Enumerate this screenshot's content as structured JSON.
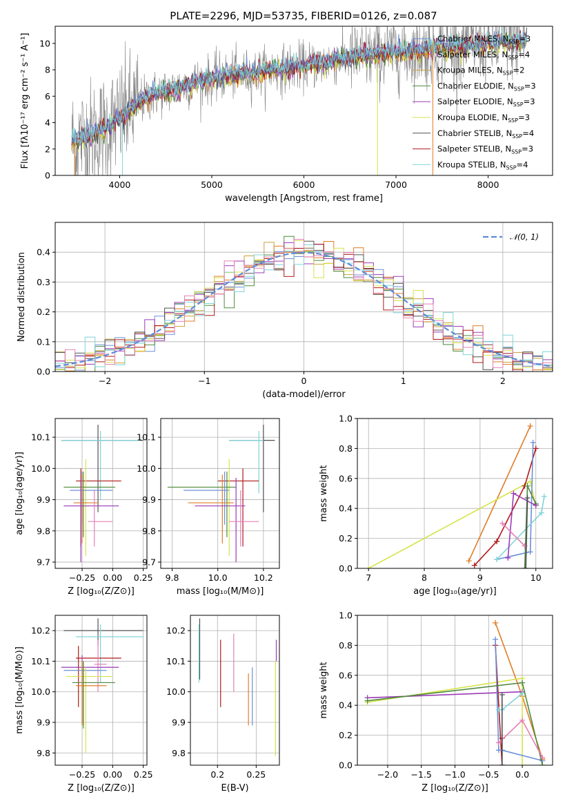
{
  "figure_title": "PLATE=2296, MJD=53735, FIBERID=0126, z=0.087",
  "colors": {
    "data": "#808080",
    "Chabrier MILES": "#6a8fd6",
    "Salpeter MILES": "#e07c24",
    "Kroupa MILES": "#c8a13a",
    "Chabrier ELODIE": "#4e8a3e",
    "Salpeter ELODIE": "#9b3ab5",
    "Kroupa ELODIE": "#d6e34a",
    "Chabrier STELIB": "#505050",
    "Salpeter STELIB": "#b01818",
    "Kroupa STELIB": "#7fd4d8",
    "pink": "#e57fb5",
    "lime": "#cde35a",
    "gauss": "#5b8bd9"
  },
  "chart_data": [
    {
      "type": "line",
      "panel": "spectrum",
      "xlabel": "wavelength [Angstrom, rest frame]",
      "ylabel": "Flux [fλ10⁻¹⁷ erg cm⁻² s⁻¹ A⁻¹]",
      "xlim": [
        3300,
        8700
      ],
      "ylim": [
        0,
        11.3
      ],
      "xticks": [
        "4000",
        "5000",
        "6000",
        "7000",
        "8000"
      ],
      "yticks": [
        "0",
        "2",
        "4",
        "6",
        "8",
        "10"
      ],
      "legend_loc": "upper right",
      "legend": [
        {
          "model": "Chabrier MILES",
          "text": "Chabrier MILES, N",
          "sub": "SSP",
          "suffix": "=3"
        },
        {
          "model": "Salpeter MILES",
          "text": "Salpeter MILES, N",
          "sub": "SSP",
          "suffix": "=4"
        },
        {
          "model": "Kroupa MILES",
          "text": "Kroupa MILES, N",
          "sub": "SSP",
          "suffix": "=2"
        },
        {
          "model": "Chabrier ELODIE",
          "text": "Chabrier ELODIE, N",
          "sub": "SSP",
          "suffix": "=3"
        },
        {
          "model": "Salpeter ELODIE",
          "text": "Salpeter ELODIE, N",
          "sub": "SSP",
          "suffix": "=3"
        },
        {
          "model": "Kroupa ELODIE",
          "text": "Kroupa ELODIE, N",
          "sub": "SSP",
          "suffix": "=3"
        },
        {
          "model": "Chabrier STELIB",
          "text": "Chabrier STELIB, N",
          "sub": "SSP",
          "suffix": "=4"
        },
        {
          "model": "Salpeter STELIB",
          "text": "Salpeter STELIB, N",
          "sub": "SSP",
          "suffix": "=3"
        },
        {
          "model": "Kroupa STELIB",
          "text": "Kroupa STELIB, N",
          "sub": "SSP",
          "suffix": "=4"
        }
      ],
      "continuum": {
        "x": [
          3480,
          3600,
          3800,
          4000,
          4200,
          4400,
          4600,
          4800,
          5000,
          5200,
          5400,
          5600,
          5800,
          6000,
          6200,
          6400,
          6600,
          6800,
          7000,
          7200,
          7400,
          7600,
          7800,
          8000,
          8200,
          8400
        ],
        "y": [
          2.5,
          2.8,
          3.3,
          4.3,
          5.5,
          6.2,
          6.5,
          7.0,
          7.3,
          7.6,
          7.7,
          7.9,
          8.1,
          8.3,
          8.5,
          8.8,
          9.0,
          9.2,
          9.3,
          9.4,
          9.6,
          9.7,
          9.8,
          9.9,
          10.1,
          10.2
        ]
      }
    },
    {
      "type": "histogram",
      "panel": "residuals",
      "xlabel": "(data-model)/error",
      "ylabel": "Normed distribution",
      "xlim": [
        -2.5,
        2.5
      ],
      "ylim": [
        0,
        0.5
      ],
      "xticks": [
        "−2",
        "−1",
        "0",
        "1",
        "2"
      ],
      "yticks": [
        "0.0",
        "0.1",
        "0.2",
        "0.3",
        "0.4"
      ],
      "legend": [
        "𝒩(0, 1)"
      ],
      "legend_loc": "upper right",
      "bins": 50
    },
    {
      "type": "errorbar",
      "panel": "age-vs-Z",
      "xlabel": "Z [log₁₀(Z/Z⊙)]",
      "ylabel": "age  [log₁₀(age/yr)]",
      "xlim": [
        -0.47,
        0.28
      ],
      "ylim": [
        9.68,
        10.16
      ],
      "xticks": [
        "−0.25",
        "0.00",
        "0.25"
      ],
      "yticks": [
        "9.7",
        "9.8",
        "9.9",
        "10.0",
        "10.1"
      ],
      "points": [
        {
          "model": "Chabrier STELIB",
          "x": [
            -0.42,
            0.25
          ],
          "xc": -0.12,
          "y": [
            9.86,
            10.14
          ],
          "yc": 10.09
        },
        {
          "model": "Kroupa STELIB",
          "x": [
            -0.42,
            0.22
          ],
          "xc": -0.1,
          "y": [
            9.9,
            10.12
          ],
          "yc": 10.09
        },
        {
          "model": "Salpeter STELIB",
          "x": [
            -0.3,
            0.07
          ],
          "xc": -0.26,
          "y": [
            9.75,
            10.0
          ],
          "yc": 9.96
        },
        {
          "model": "Kroupa ELODIE",
          "x": [
            -0.4,
            0.0
          ],
          "xc": -0.22,
          "y": [
            9.72,
            10.03
          ],
          "yc": 9.94
        },
        {
          "model": "Chabrier ELODIE",
          "x": [
            -0.4,
            0.02
          ],
          "xc": -0.24,
          "y": [
            9.78,
            9.99
          ],
          "yc": 9.94
        },
        {
          "model": "Chabrier MILES",
          "x": [
            -0.35,
            0.0
          ],
          "xc": -0.25,
          "y": [
            9.82,
            9.99
          ],
          "yc": 9.93
        },
        {
          "model": "Salpeter MILES",
          "x": [
            -0.32,
            -0.12
          ],
          "xc": -0.25,
          "y": [
            9.76,
            9.98
          ],
          "yc": 9.89
        },
        {
          "model": "Salpeter ELODIE",
          "x": [
            -0.4,
            0.05
          ],
          "xc": -0.26,
          "y": [
            9.7,
            9.97
          ],
          "yc": 9.88
        },
        {
          "model": "pink",
          "x": [
            -0.2,
            0.0
          ],
          "xc": -0.15,
          "y": [
            9.75,
            9.93
          ],
          "yc": 9.83
        }
      ]
    },
    {
      "type": "errorbar",
      "panel": "age-vs-mass",
      "xlabel": "mass [log₁₀(M/M⊙)]",
      "ylabel": "",
      "xlim": [
        9.75,
        10.27
      ],
      "ylim": [
        9.68,
        10.16
      ],
      "xticks": [
        "9.8",
        "10.0",
        "10.2"
      ],
      "yticks": [
        "9.7",
        "9.8",
        "9.9",
        "10.0",
        "10.1"
      ],
      "points": [
        {
          "model": "Chabrier STELIB",
          "x": [
            10.05,
            10.25
          ],
          "xc": 10.2,
          "y": [
            9.86,
            10.14
          ],
          "yc": 10.09
        },
        {
          "model": "Kroupa STELIB",
          "x": [
            10.05,
            10.2
          ],
          "xc": 10.18,
          "y": [
            9.92,
            10.12
          ],
          "yc": 10.09
        },
        {
          "model": "Salpeter STELIB",
          "x": [
            10.0,
            10.18
          ],
          "xc": 10.11,
          "y": [
            9.75,
            10.0
          ],
          "yc": 9.96
        },
        {
          "model": "Kroupa ELODIE",
          "x": [
            9.8,
            10.06
          ],
          "xc": 10.05,
          "y": [
            9.72,
            10.03
          ],
          "yc": 9.94
        },
        {
          "model": "Chabrier ELODIE",
          "x": [
            9.78,
            10.08
          ],
          "xc": 10.04,
          "y": [
            9.78,
            9.99
          ],
          "yc": 9.94
        },
        {
          "model": "Chabrier MILES",
          "x": [
            9.85,
            10.05
          ],
          "xc": 10.03,
          "y": [
            9.82,
            9.99
          ],
          "yc": 9.93
        },
        {
          "model": "Salpeter MILES",
          "x": [
            9.87,
            10.07
          ],
          "xc": 10.02,
          "y": [
            9.76,
            9.98
          ],
          "yc": 9.89
        },
        {
          "model": "Salpeter ELODIE",
          "x": [
            9.9,
            10.12
          ],
          "xc": 10.08,
          "y": [
            9.7,
            9.97
          ],
          "yc": 9.88
        },
        {
          "model": "pink",
          "x": [
            10.05,
            10.18
          ],
          "xc": 10.1,
          "y": [
            9.75,
            9.93
          ],
          "yc": 9.83
        }
      ]
    },
    {
      "type": "line",
      "panel": "massweight-vs-age",
      "xlabel": "age  [log₁₀(age/yr)]",
      "ylabel": "mass weight",
      "xlim": [
        6.8,
        10.3
      ],
      "ylim": [
        0,
        1.0
      ],
      "xticks": [
        "7",
        "8",
        "9",
        "10"
      ],
      "yticks": [
        "0.0",
        "0.2",
        "0.4",
        "0.6",
        "0.8",
        "1.0"
      ],
      "series": [
        {
          "model": "Salpeter MILES",
          "x": [
            8.8,
            9.9
          ],
          "y": [
            0.05,
            0.95
          ]
        },
        {
          "model": "Kroupa ELODIE",
          "x": [
            7.0,
            9.9,
            10.0
          ],
          "y": [
            0.0,
            0.58,
            0.42
          ]
        },
        {
          "model": "Salpeter STELIB",
          "x": [
            8.9,
            9.3,
            9.8,
            10.0
          ],
          "y": [
            0.02,
            0.18,
            0.55,
            0.8
          ]
        },
        {
          "model": "Chabrier MILES",
          "x": [
            9.3,
            9.9,
            9.95
          ],
          "y": [
            0.06,
            0.11,
            0.84
          ]
        },
        {
          "model": "Kroupa STELIB",
          "x": [
            9.3,
            10.1,
            10.15
          ],
          "y": [
            0.06,
            0.37,
            0.48
          ]
        },
        {
          "model": "Chabrier ELODIE",
          "x": [
            9.8,
            9.85,
            10.0
          ],
          "y": [
            0.0,
            0.55,
            0.43
          ]
        },
        {
          "model": "Salpeter ELODIE",
          "x": [
            9.5,
            9.6,
            10.0
          ],
          "y": [
            0.07,
            0.5,
            0.42
          ]
        },
        {
          "model": "pink",
          "x": [
            9.4,
            9.8
          ],
          "y": [
            0.3,
            0.15
          ]
        },
        {
          "model": "Chabrier STELIB",
          "x": [
            9.82,
            9.85
          ],
          "y": [
            0.0,
            0.47
          ]
        }
      ]
    },
    {
      "type": "errorbar",
      "panel": "mass-vs-Z",
      "xlabel": "Z [log₁₀(Z/Z⊙)]",
      "ylabel": "mass [log₁₀(M/M⊙)]",
      "xlim": [
        -0.47,
        0.28
      ],
      "ylim": [
        9.76,
        10.25
      ],
      "xticks": [
        "−0.25",
        "0.00",
        "0.25"
      ],
      "yticks": [
        "9.8",
        "9.9",
        "10.0",
        "10.1",
        "10.2"
      ],
      "points": [
        {
          "model": "Chabrier STELIB",
          "x": [
            -0.4,
            0.25
          ],
          "xc": -0.12,
          "y": [
            10.15,
            10.24
          ],
          "yc": 10.2
        },
        {
          "model": "Kroupa STELIB",
          "x": [
            -0.3,
            0.25
          ],
          "xc": -0.1,
          "y": [
            10.03,
            10.22
          ],
          "yc": 10.18
        },
        {
          "model": "Salpeter STELIB",
          "x": [
            -0.3,
            0.07
          ],
          "xc": -0.28,
          "y": [
            9.95,
            10.15
          ],
          "yc": 10.11
        },
        {
          "model": "pink",
          "x": [
            -0.15,
            -0.05
          ],
          "xc": -0.12,
          "y": [
            10.0,
            10.17
          ],
          "yc": 10.09
        },
        {
          "model": "Salpeter ELODIE",
          "x": [
            -0.42,
            0.05
          ],
          "xc": -0.25,
          "y": [
            9.9,
            10.12
          ],
          "yc": 10.08
        },
        {
          "model": "Chabrier MILES",
          "x": [
            -0.4,
            -0.05
          ],
          "xc": -0.24,
          "y": [
            9.89,
            10.1
          ],
          "yc": 10.07
        },
        {
          "model": "Kroupa ELODIE",
          "x": [
            -0.38,
            0.0
          ],
          "xc": -0.22,
          "y": [
            9.8,
            10.08
          ],
          "yc": 10.05
        },
        {
          "model": "Chabrier ELODIE",
          "x": [
            -0.33,
            0.02
          ],
          "xc": -0.24,
          "y": [
            9.88,
            10.1
          ],
          "yc": 10.03
        },
        {
          "model": "Salpeter MILES",
          "x": [
            -0.3,
            -0.05
          ],
          "xc": -0.25,
          "y": [
            9.89,
            10.1
          ],
          "yc": 10.02
        }
      ]
    },
    {
      "type": "errorbar",
      "panel": "mass-vs-EBV",
      "xlabel": "E(B-V)",
      "ylabel": "",
      "xlim": [
        0.165,
        0.28
      ],
      "ylim": [
        9.76,
        10.25
      ],
      "xticks": [
        "0.2",
        "0.25"
      ],
      "yticks": [
        "9.8",
        "9.9",
        "10.0",
        "10.1",
        "10.2"
      ],
      "points": [
        {
          "model": "Chabrier STELIB",
          "x": [
            0.177,
            0.177
          ],
          "xc": 0.177,
          "y": [
            10.04,
            10.24
          ],
          "yc": 10.2
        },
        {
          "model": "Kroupa STELIB",
          "x": [
            0.176,
            0.176
          ],
          "xc": 0.176,
          "y": [
            10.03,
            10.22
          ],
          "yc": 10.15
        },
        {
          "model": "Salpeter STELIB",
          "x": [
            0.204,
            0.204
          ],
          "xc": 0.204,
          "y": [
            9.95,
            10.17
          ],
          "yc": 10.08
        },
        {
          "model": "pink",
          "x": [
            0.221,
            0.221
          ],
          "xc": 0.221,
          "y": [
            10.0,
            10.19
          ],
          "yc": 10.09
        },
        {
          "model": "Salpeter MILES",
          "x": [
            0.24,
            0.24
          ],
          "xc": 0.24,
          "y": [
            9.89,
            10.06
          ],
          "yc": 9.98
        },
        {
          "model": "Chabrier MILES",
          "x": [
            0.245,
            0.245
          ],
          "xc": 0.245,
          "y": [
            9.89,
            10.08
          ],
          "yc": 9.99
        },
        {
          "model": "Salpeter ELODIE",
          "x": [
            0.276,
            0.276
          ],
          "xc": 0.276,
          "y": [
            10.1,
            10.17
          ],
          "yc": 10.13
        },
        {
          "model": "Kroupa ELODIE",
          "x": [
            0.275,
            0.275
          ],
          "xc": 0.275,
          "y": [
            9.79,
            10.1
          ],
          "yc": 9.95
        }
      ]
    },
    {
      "type": "line",
      "panel": "massweight-vs-Z",
      "xlabel": "Z [log₁₀(Z/Z⊙)]",
      "ylabel": "mass weight",
      "xlim": [
        -2.45,
        0.45
      ],
      "ylim": [
        0,
        1.0
      ],
      "xticks": [
        "−2.0",
        "−1.5",
        "−1.0",
        "−0.5",
        "0.0"
      ],
      "yticks": [
        "0.0",
        "0.2",
        "0.4",
        "0.6",
        "0.8",
        "1.0"
      ],
      "series": [
        {
          "model": "Salpeter MILES",
          "x": [
            -0.4,
            0.0,
            0.3
          ],
          "y": [
            0.95,
            0.46,
            0.04
          ]
        },
        {
          "model": "Kroupa ELODIE",
          "x": [
            -2.3,
            0.0,
            0.0
          ],
          "y": [
            0.42,
            0.58,
            0.0
          ]
        },
        {
          "model": "Salpeter ELODIE",
          "x": [
            -2.3,
            0.0
          ],
          "y": [
            0.45,
            0.49
          ]
        },
        {
          "model": "Salpeter STELIB",
          "x": [
            -0.4,
            -0.3,
            -0.3
          ],
          "y": [
            0.8,
            0.0,
            0.18
          ]
        },
        {
          "model": "Chabrier MILES",
          "x": [
            -0.4,
            -0.35,
            -0.3,
            0.3
          ],
          "y": [
            0.84,
            0.1,
            0.1,
            0.03
          ]
        },
        {
          "model": "Kroupa STELIB",
          "x": [
            -0.35,
            -0.3,
            0.0
          ],
          "y": [
            0.37,
            0.37,
            0.48
          ]
        },
        {
          "model": "Chabrier ELODIE",
          "x": [
            -2.3,
            0.0,
            0.3
          ],
          "y": [
            0.43,
            0.55,
            0.0
          ]
        },
        {
          "model": "pink",
          "x": [
            -0.35,
            0.0,
            0.3
          ],
          "y": [
            0.15,
            0.3,
            0.05
          ]
        },
        {
          "model": "Chabrier STELIB",
          "x": [
            -0.3,
            -0.3
          ],
          "y": [
            0.0,
            0.47
          ]
        }
      ]
    }
  ]
}
